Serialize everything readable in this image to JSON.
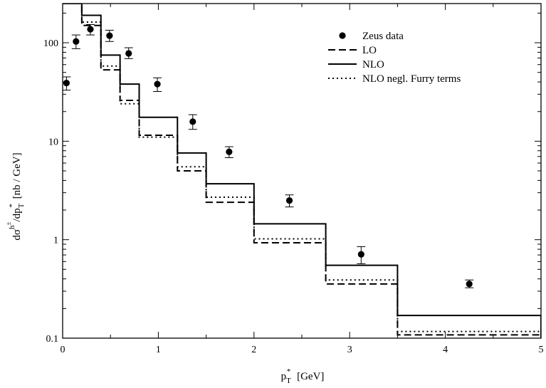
{
  "chart_data": {
    "type": "line",
    "title": "",
    "xlabel": "p_T^* [GeV]",
    "ylabel": "dσ^{h±}/dp_T^* [nb / GeV]",
    "xlim": [
      0,
      5
    ],
    "ylim": [
      0.1,
      250
    ],
    "yscale": "log",
    "grid": false,
    "legend_position": "top-right",
    "x_ticks": [
      {
        "value": 0,
        "label": "0"
      },
      {
        "value": 1,
        "label": "1"
      },
      {
        "value": 2,
        "label": "2"
      },
      {
        "value": 3,
        "label": "3"
      },
      {
        "value": 4,
        "label": "4"
      },
      {
        "value": 5,
        "label": "5"
      }
    ],
    "y_ticks": [
      {
        "value": 0.1,
        "label": "0.1"
      },
      {
        "value": 1,
        "label": "1"
      },
      {
        "value": 10,
        "label": "10"
      },
      {
        "value": 100,
        "label": "100"
      }
    ],
    "bin_edges": [
      0,
      0.2,
      0.4,
      0.6,
      0.8,
      1.2,
      1.5,
      2.0,
      2.75,
      3.5,
      5.0
    ],
    "series": [
      {
        "name": "Zeus data",
        "kind": "points",
        "marker": "circle",
        "points": [
          {
            "x": 0.04,
            "y": 39,
            "ylow": 33,
            "yhigh": 45
          },
          {
            "x": 0.14,
            "y": 103,
            "ylow": 87,
            "yhigh": 120
          },
          {
            "x": 0.29,
            "y": 137,
            "ylow": 120,
            "yhigh": 153
          },
          {
            "x": 0.49,
            "y": 118,
            "ylow": 103,
            "yhigh": 134
          },
          {
            "x": 0.69,
            "y": 78,
            "ylow": 69,
            "yhigh": 89
          },
          {
            "x": 0.99,
            "y": 38,
            "ylow": 32,
            "yhigh": 44
          },
          {
            "x": 1.36,
            "y": 15.8,
            "ylow": 13.2,
            "yhigh": 18.6
          },
          {
            "x": 1.74,
            "y": 7.8,
            "ylow": 6.8,
            "yhigh": 8.8
          },
          {
            "x": 2.37,
            "y": 2.5,
            "ylow": 2.15,
            "yhigh": 2.85
          },
          {
            "x": 3.12,
            "y": 0.71,
            "ylow": 0.57,
            "yhigh": 0.85
          },
          {
            "x": 4.25,
            "y": 0.355,
            "ylow": 0.325,
            "yhigh": 0.39
          }
        ]
      },
      {
        "name": "LO",
        "kind": "step",
        "dash": "10,5",
        "values": [
          300,
          150,
          53,
          26,
          11.5,
          5.0,
          2.4,
          0.93,
          0.355,
          0.108
        ]
      },
      {
        "name": "NLO",
        "kind": "step",
        "dash": "",
        "values": [
          300,
          190,
          75,
          38,
          17.5,
          7.6,
          3.7,
          1.45,
          0.55,
          0.17
        ]
      },
      {
        "name": "NLO negl. Furry terms",
        "kind": "step",
        "dash": "2,4",
        "values": [
          300,
          162,
          58,
          24,
          11.0,
          5.5,
          2.7,
          1.02,
          0.39,
          0.117
        ]
      }
    ]
  }
}
